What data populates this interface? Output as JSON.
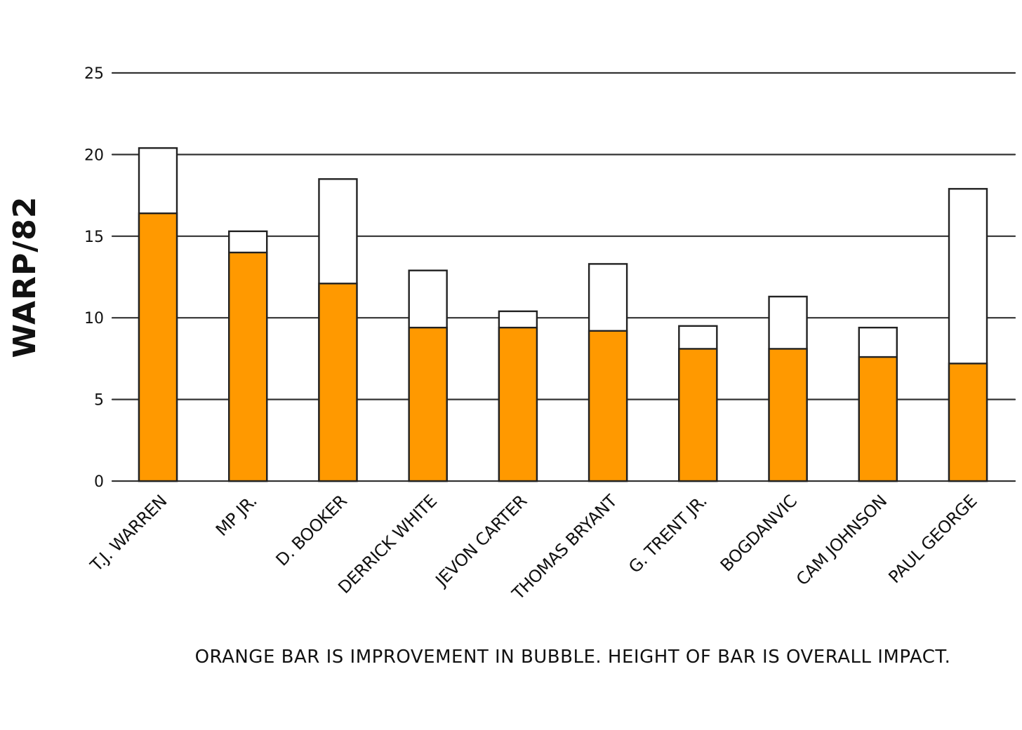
{
  "chart_data": {
    "type": "bar",
    "title": "",
    "xlabel": "",
    "ylabel": "WARP/82",
    "caption": "Orange bar is improvement in bubble.  Height of bar is overall impact.",
    "ylim": [
      0,
      25
    ],
    "yticks": [
      0,
      5,
      10,
      15,
      20,
      25
    ],
    "grid": true,
    "categories": [
      "T.J. Warren",
      "MP Jr.",
      "D. Booker",
      "Derrick White",
      "Jevon Carter",
      "Thomas Bryant",
      "G. Trent Jr.",
      "Bogdanvic",
      "Cam Johnson",
      "Paul George"
    ],
    "series": [
      {
        "values": [
          16.4,
          14.0,
          12.1,
          9.4,
          9.4,
          9.2,
          8.1,
          8.1,
          7.6,
          7.2
        ]
      },
      {
        "values": [
          20.4,
          15.3,
          18.5,
          12.9,
          10.4,
          13.3,
          9.5,
          11.3,
          9.4,
          17.9
        ]
      }
    ],
    "colors": {
      "improvement": "#ff9900",
      "overall_outline": "#222222",
      "grid": "#333333"
    }
  }
}
